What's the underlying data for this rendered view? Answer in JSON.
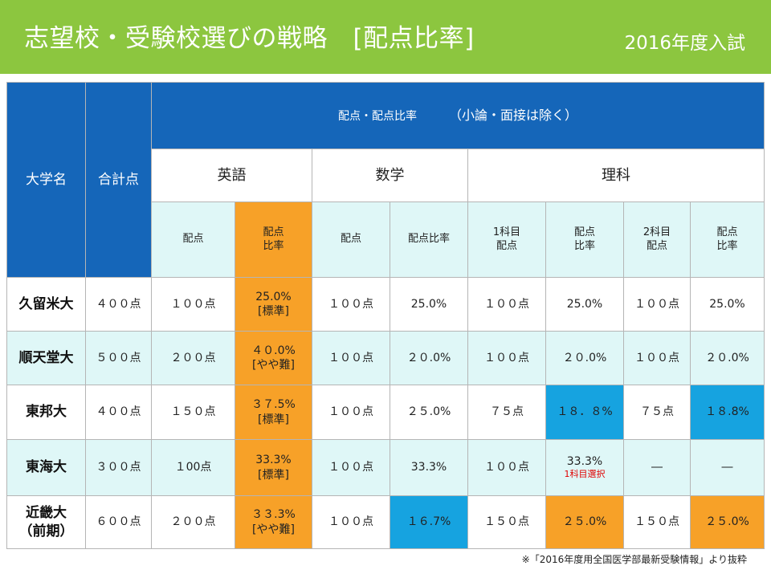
{
  "header": {
    "title": "志望校・受験校選びの戦略　[配点比率]",
    "year": "2016年度入試"
  },
  "table": {
    "col_university": "大学名",
    "col_total": "合計点",
    "main_header": "配点・配点比率",
    "main_note": "（小論・面接は除く）",
    "subjects": {
      "english": "英語",
      "math": "数学",
      "science": "理科"
    },
    "sub_headers": {
      "eng_score": "配点",
      "eng_ratio_line1": "配点",
      "eng_ratio_line2": "比率",
      "math_score": "配点",
      "math_ratio": "配点比率",
      "sci1_score_line1": "1科目",
      "sci1_score_line2": "配点",
      "sci1_ratio_line1": "配点",
      "sci1_ratio_line2": "比率",
      "sci2_score_line1": "2科目",
      "sci2_score_line2": "配点",
      "sci2_ratio_line1": "配点",
      "sci2_ratio_line2": "比率"
    },
    "rows": [
      {
        "name": "久留米大",
        "name2": "",
        "total": "４００点",
        "eng_score": "１００点",
        "eng_ratio": "25.0%",
        "eng_level": "[標準]",
        "math_score": "１００点",
        "math_ratio": "25.0%",
        "sci1_score": "１００点",
        "sci1_ratio": "25.0%",
        "sci1_note": "",
        "sci2_score": "１００点",
        "sci2_ratio": "25.0%"
      },
      {
        "name": "順天堂大",
        "name2": "",
        "total": "５００点",
        "eng_score": "２００点",
        "eng_ratio": "４０.0%",
        "eng_level": "[やや難]",
        "math_score": "１００点",
        "math_ratio": "２０.0%",
        "sci1_score": "１００点",
        "sci1_ratio": "２０.0%",
        "sci1_note": "",
        "sci2_score": "１００点",
        "sci2_ratio": "２０.0%"
      },
      {
        "name": "東邦大",
        "name2": "",
        "total": "４００点",
        "eng_score": "１５０点",
        "eng_ratio": "３７.5%",
        "eng_level": "[標準]",
        "math_score": "１００点",
        "math_ratio": "２５.0%",
        "sci1_score": "７５点",
        "sci1_ratio": "１８．８%",
        "sci1_note": "",
        "sci2_score": "７５点",
        "sci2_ratio": "１８.8%"
      },
      {
        "name": "東海大",
        "name2": "",
        "total": "３００点",
        "eng_score": "１00点",
        "eng_ratio": "33.3%",
        "eng_level": "[標準]",
        "math_score": "１００点",
        "math_ratio": "33.3%",
        "sci1_score": "１００点",
        "sci1_ratio": "33.3%",
        "sci1_note": "1科目選択",
        "sci2_score": "―",
        "sci2_ratio": "―"
      },
      {
        "name": "近畿大",
        "name2": "（前期）",
        "total": "６００点",
        "eng_score": "２００点",
        "eng_ratio": "３３.3%",
        "eng_level": "[やや難]",
        "math_score": "１００点",
        "math_ratio": "１６.7%",
        "sci1_score": "１５０点",
        "sci1_ratio": "２５.0%",
        "sci1_note": "",
        "sci2_score": "１５０点",
        "sci2_ratio": "２５.0%"
      }
    ]
  },
  "footnote": "※「2016年度用全国医学部最新受験情報」より抜粋",
  "colors": {
    "banner": "#8cc63f",
    "header_blue": "#1566b9",
    "orange": "#f7a128",
    "cyan": "#16a3e0",
    "light_cyan": "#dff7f7"
  }
}
